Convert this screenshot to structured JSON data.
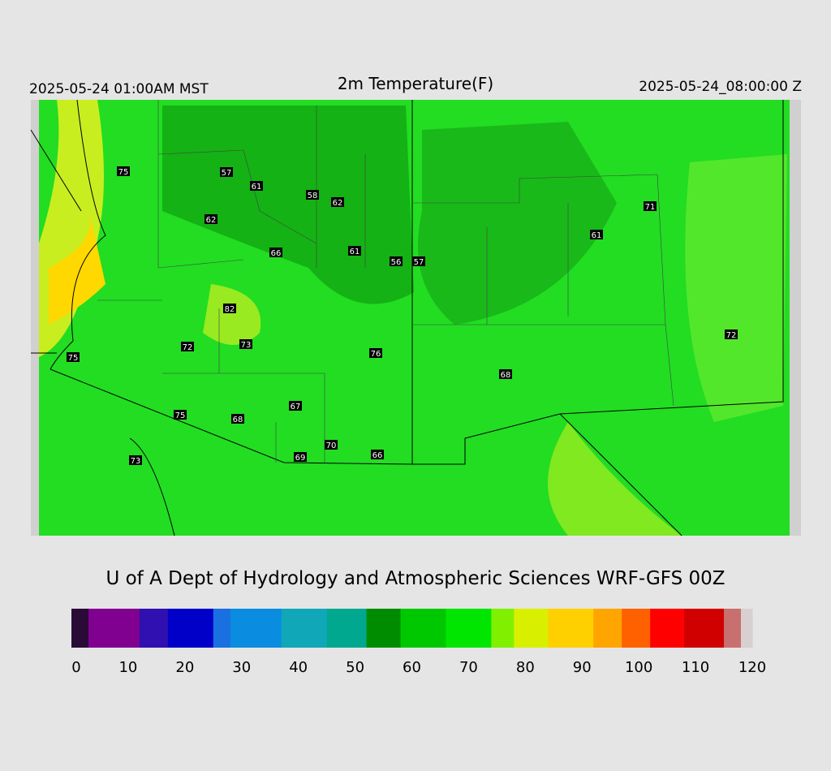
{
  "header": {
    "left": "2025-05-24 01:00AM MST",
    "title": "2m Temperature(F)",
    "right": "2025-05-24_08:00:00 Z"
  },
  "stations": [
    75,
    57,
    61,
    58,
    62,
    62,
    66,
    61,
    56,
    57,
    71,
    61,
    82,
    73,
    72,
    75,
    76,
    68,
    72,
    67,
    75,
    68,
    70,
    69,
    66,
    73
  ],
  "footer": "U of A Dept of Hydrology and Atmospheric Sciences WRF-GFS 00Z",
  "colorbar": {
    "lim": [
      0,
      120
    ],
    "ticks": [
      0,
      10,
      20,
      30,
      40,
      50,
      60,
      70,
      80,
      90,
      100,
      110,
      120
    ],
    "bins": [
      0,
      3,
      12,
      17,
      25,
      28,
      37,
      45,
      52,
      58,
      66,
      74,
      78,
      84,
      92,
      97,
      102,
      108,
      115,
      118,
      120
    ],
    "colors": [
      "#2a0a36",
      "#800090",
      "#3010b0",
      "#0000c8",
      "#1a70e0",
      "#0a8ce0",
      "#10a8b8",
      "#00a890",
      "#008c00",
      "#00c800",
      "#00e600",
      "#80f000",
      "#d8f000",
      "#ffd000",
      "#ffa500",
      "#ff6000",
      "#ff0000",
      "#d00000",
      "#c87070",
      "#d8d0d0"
    ]
  }
}
